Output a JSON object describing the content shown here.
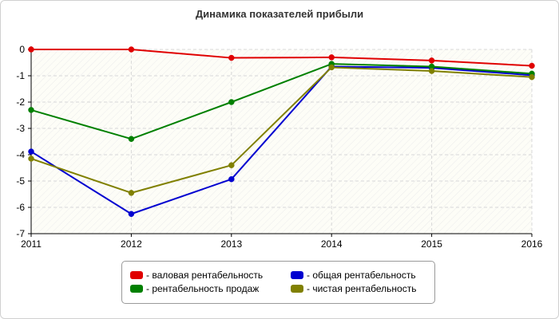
{
  "chart_data": {
    "type": "line",
    "title": "Динамика показателей прибыли",
    "xlabel": "",
    "ylabel": "",
    "x": [
      2011,
      2012,
      2013,
      2014,
      2015,
      2016
    ],
    "xlim": [
      2011,
      2016
    ],
    "ylim": [
      -7,
      0
    ],
    "yticks": [
      0,
      -1,
      -2,
      -3,
      -4,
      -5,
      -6,
      -7
    ],
    "grid": true,
    "legend_position": "bottom",
    "series": [
      {
        "name": "- валовая рентабельность",
        "color": "#e00000",
        "values": [
          0.0,
          0.0,
          -0.32,
          -0.3,
          -0.42,
          -0.62
        ]
      },
      {
        "name": "- общая рентабельность",
        "color": "#0000d0",
        "values": [
          -3.88,
          -6.25,
          -4.93,
          -0.65,
          -0.7,
          -0.98
        ]
      },
      {
        "name": "- рентабельность продаж",
        "color": "#008000",
        "values": [
          -2.3,
          -3.4,
          -2.0,
          -0.55,
          -0.65,
          -0.92
        ]
      },
      {
        "name": "- чистая рентабельность",
        "color": "#808000",
        "values": [
          -4.15,
          -5.45,
          -4.4,
          -0.68,
          -0.82,
          -1.05
        ]
      }
    ]
  }
}
